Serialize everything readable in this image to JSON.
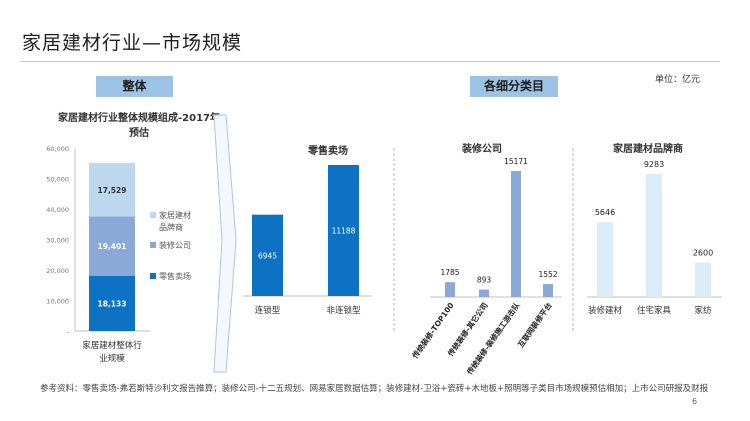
{
  "header": {
    "title": "家居建材行业—市场规模",
    "left_section": "整体",
    "right_section": "各细分类目",
    "unit": "单位：亿元"
  },
  "colors": {
    "retail": "#0d71c4",
    "decoration": "#8aa9d8",
    "brand": "#bcd7ee",
    "pill": "#9cc3e3",
    "brand_light": "#dcebf8"
  },
  "chart_data": [
    {
      "type": "bar",
      "stacked": true,
      "title": "家居建材行业整体规模组成-2017年预估",
      "categories": [
        "家居建材整体行业规模"
      ],
      "ylim": [
        0,
        60000
      ],
      "yticks": [
        "-",
        "10,000",
        "20,000",
        "30,000",
        "40,000",
        "50,000",
        "60,000"
      ],
      "series": [
        {
          "name": "零售卖场",
          "values": [
            18133
          ],
          "label": "18,133"
        },
        {
          "name": "装修公司",
          "values": [
            19401
          ],
          "label": "19,401"
        },
        {
          "name": "家居建材品牌商",
          "values": [
            17529
          ],
          "label": "17,529"
        }
      ],
      "legend": [
        "家居建材品牌商",
        "装修公司",
        "零售卖场"
      ]
    },
    {
      "type": "bar",
      "title": "零售卖场",
      "categories": [
        "连锁型",
        "非连锁型"
      ],
      "values": [
        6945,
        11188
      ]
    },
    {
      "type": "bar",
      "title": "装修公司",
      "categories": [
        "传统装修-TOP100",
        "传统装修-其它公司",
        "传统装修-装修施工游击队",
        "互联网装修平台"
      ],
      "values": [
        1785,
        893,
        15171,
        1552
      ]
    },
    {
      "type": "bar",
      "title": "家居建材品牌商",
      "categories": [
        "装修建材",
        "住宅家具",
        "家纺"
      ],
      "values": [
        5646,
        9283,
        2600
      ]
    }
  ],
  "footer": {
    "source": "参考资料：零售卖场-弗若斯特沙利文报告推算；装修公司-十二五规划、网易家居数据估算；装修建材-卫浴+瓷砖+木地板+照明等子类目市场规模预估相加；上市公司研报及财报",
    "page": "6"
  }
}
